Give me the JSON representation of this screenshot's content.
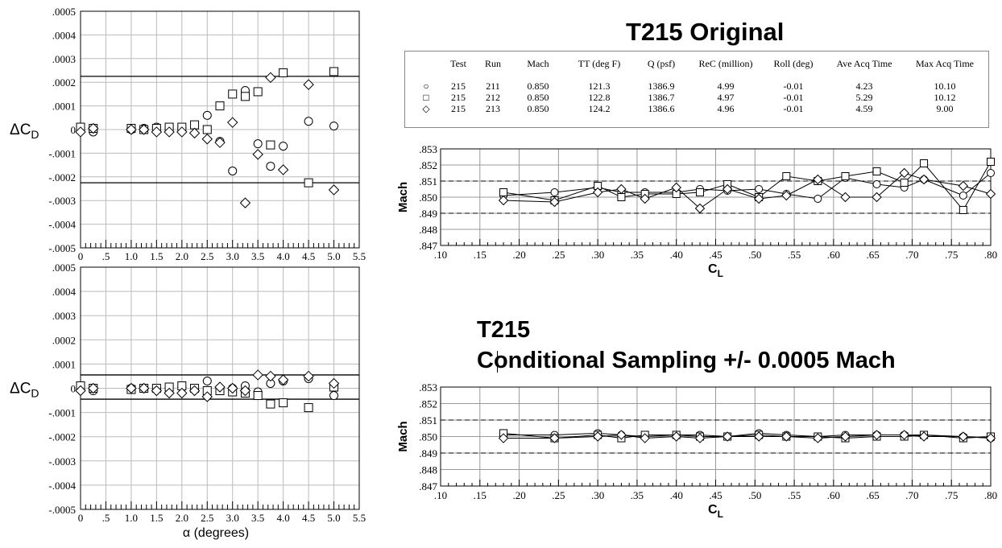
{
  "left_charts": {
    "ylabel": "ΔC",
    "ylabel_sub": "D",
    "xlabel": "α (degrees)",
    "y_ticks": [
      ".0005",
      ".0004",
      ".0003",
      ".0002",
      ".0001",
      "0",
      "-.0001",
      "-.0002",
      "-.0003",
      "-.0004",
      "-.0005"
    ],
    "x_ticks": [
      "0",
      ".5",
      "1.0",
      "1.5",
      "2.0",
      "2.5",
      "3.0",
      "3.5",
      "4.0",
      "4.5",
      "5.0",
      "5.5"
    ]
  },
  "right_top": {
    "title": "T215 Original",
    "legend_headers": [
      "Test",
      "Run",
      "Mach",
      "TT (deg F)",
      "Q (psf)",
      "ReC (million)",
      "Roll (deg)",
      "Ave Acq Time",
      "Max Acq Time"
    ],
    "legend_rows": [
      {
        "symbol": "○",
        "cells": [
          "215",
          "211",
          "0.850",
          "121.3",
          "1386.9",
          "4.99",
          "-0.01",
          "4.23",
          "10.10"
        ]
      },
      {
        "symbol": "□",
        "cells": [
          "215",
          "212",
          "0.850",
          "122.8",
          "1386.7",
          "4.97",
          "-0.01",
          "5.29",
          "10.12"
        ]
      },
      {
        "symbol": "◇",
        "cells": [
          "215",
          "213",
          "0.850",
          "124.2",
          "1386.6",
          "4.96",
          "-0.01",
          "4.59",
          "9.00"
        ]
      }
    ]
  },
  "right_bottom": {
    "title_line1": "T215",
    "title_line2": "Conditional Sampling +/- 0.0005 Mach"
  },
  "mach_axis": {
    "ylabel": "Mach",
    "xlabel": "C",
    "xlabel_sub": "L",
    "y_ticks": [
      ".853",
      ".852",
      ".851",
      ".850",
      ".849",
      ".848",
      ".847"
    ],
    "x_ticks": [
      ".10",
      ".15",
      ".20",
      ".25",
      ".30",
      ".35",
      ".40",
      ".45",
      ".50",
      ".55",
      ".60",
      ".65",
      ".70",
      ".75",
      ".80"
    ]
  },
  "chart_data": [
    {
      "type": "scatter",
      "ylabel": "ΔCD",
      "xlabel": "",
      "xlim": [
        0,
        5.5
      ],
      "ylim": [
        -0.0005,
        0.0005
      ],
      "grid": true,
      "reference_lines": [
        0.000225,
        -0.000225
      ],
      "series": [
        {
          "marker": "circle",
          "x": [
            0,
            0.25,
            1.0,
            1.25,
            1.5,
            1.75,
            2.0,
            2.5,
            2.75,
            3.0,
            3.25,
            3.5,
            3.75,
            4.0,
            4.5,
            5.0
          ],
          "y": [
            0.0,
            -1e-05,
            0.0,
            5e-06,
            1e-05,
            5e-06,
            5e-06,
            6e-05,
            -5e-05,
            -0.000175,
            0.000165,
            -6e-05,
            -0.000155,
            -7e-05,
            3.5e-05,
            1.5e-05
          ]
        },
        {
          "marker": "square",
          "x": [
            0,
            0.25,
            1.0,
            1.25,
            1.5,
            1.75,
            2.0,
            2.25,
            2.5,
            2.75,
            3.0,
            3.25,
            3.5,
            3.75,
            4.0,
            4.5,
            5.0
          ],
          "y": [
            1e-05,
            5e-06,
            5e-06,
            0.0,
            5e-06,
            1e-05,
            1e-05,
            2e-05,
            0.0,
            0.0001,
            0.00015,
            0.00014,
            0.00016,
            -6.5e-05,
            0.00024,
            -0.000225,
            0.000245
          ]
        },
        {
          "marker": "diamond",
          "x": [
            0,
            0.25,
            1.0,
            1.25,
            1.5,
            1.75,
            2.0,
            2.25,
            2.5,
            2.75,
            3.0,
            3.25,
            3.5,
            3.75,
            4.0,
            4.5,
            5.0
          ],
          "y": [
            -1e-05,
            5e-06,
            0.0,
            0.0,
            -1e-05,
            -1e-05,
            -1e-05,
            -1.5e-05,
            -4e-05,
            -5.5e-05,
            3e-05,
            -0.00031,
            -0.000105,
            0.00022,
            -0.00017,
            0.00019,
            -0.000255
          ]
        }
      ]
    },
    {
      "type": "scatter",
      "ylabel": "ΔCD",
      "xlabel": "α (degrees)",
      "xlim": [
        0,
        5.5
      ],
      "ylim": [
        -0.0005,
        0.0005
      ],
      "grid": true,
      "reference_lines": [
        5.5e-05,
        -4.5e-05
      ],
      "series": [
        {
          "marker": "circle",
          "x": [
            0,
            0.25,
            1.0,
            1.25,
            1.5,
            1.75,
            2.0,
            2.25,
            2.5,
            2.75,
            3.0,
            3.25,
            3.5,
            3.75,
            4.0,
            4.5,
            5.0
          ],
          "y": [
            0.0,
            -1e-05,
            0.0,
            0.0,
            0.0,
            0.0,
            5e-06,
            0.0,
            3e-05,
            0.0,
            0.0,
            1e-05,
            -1.5e-05,
            2e-05,
            3e-05,
            4e-05,
            -3e-05
          ]
        },
        {
          "marker": "square",
          "x": [
            0,
            0.25,
            1.0,
            1.25,
            1.5,
            1.75,
            2.0,
            2.25,
            2.5,
            2.75,
            3.0,
            3.25,
            3.5,
            3.75,
            4.0,
            4.5,
            5.0
          ],
          "y": [
            1e-05,
            0.0,
            -5e-06,
            0.0,
            0.0,
            5e-06,
            1e-05,
            0.0,
            -1e-05,
            -1e-05,
            -1.5e-05,
            -2e-05,
            -3e-05,
            -6.5e-05,
            -6e-05,
            -8e-05,
            5e-06
          ]
        },
        {
          "marker": "diamond",
          "x": [
            0,
            0.25,
            1.0,
            1.25,
            1.5,
            1.75,
            2.0,
            2.25,
            2.5,
            2.75,
            3.0,
            3.25,
            3.5,
            3.75,
            4.0,
            4.5,
            5.0
          ],
          "y": [
            -1e-05,
            0.0,
            0.0,
            0.0,
            -1e-05,
            -2e-05,
            -2e-05,
            -1e-05,
            -3.5e-05,
            5e-06,
            0.0,
            -1e-05,
            5.5e-05,
            5e-05,
            3.5e-05,
            5e-05,
            2e-05
          ]
        }
      ]
    },
    {
      "type": "line",
      "title": "T215 Original",
      "ylabel": "Mach",
      "xlabel": "CL",
      "xlim": [
        0.1,
        0.8
      ],
      "ylim": [
        0.847,
        0.853
      ],
      "grid": true,
      "reference_lines": [
        0.851,
        0.849
      ],
      "series": [
        {
          "marker": "circle",
          "x": [
            0.18,
            0.245,
            0.3,
            0.33,
            0.36,
            0.4,
            0.43,
            0.465,
            0.505,
            0.54,
            0.58,
            0.615,
            0.655,
            0.69,
            0.715,
            0.765,
            0.8
          ],
          "y": [
            0.8501,
            0.8503,
            0.8506,
            0.8503,
            0.8503,
            0.8503,
            0.8505,
            0.8504,
            0.8505,
            0.8502,
            0.8499,
            0.8512,
            0.8508,
            0.8506,
            0.8511,
            0.8501,
            0.8515
          ]
        },
        {
          "marker": "square",
          "x": [
            0.18,
            0.245,
            0.3,
            0.33,
            0.36,
            0.4,
            0.43,
            0.465,
            0.505,
            0.54,
            0.58,
            0.615,
            0.655,
            0.69,
            0.715,
            0.765,
            0.8
          ],
          "y": [
            0.8503,
            0.8498,
            0.8507,
            0.85,
            0.8502,
            0.8502,
            0.8503,
            0.8508,
            0.85,
            0.8513,
            0.851,
            0.8513,
            0.8516,
            0.8509,
            0.8521,
            0.8492,
            0.8522
          ]
        },
        {
          "marker": "diamond",
          "x": [
            0.18,
            0.245,
            0.3,
            0.33,
            0.36,
            0.4,
            0.43,
            0.465,
            0.505,
            0.54,
            0.58,
            0.615,
            0.655,
            0.69,
            0.715,
            0.765,
            0.8
          ],
          "y": [
            0.8498,
            0.8497,
            0.8503,
            0.8505,
            0.8499,
            0.8506,
            0.8493,
            0.8505,
            0.8499,
            0.8501,
            0.8511,
            0.85,
            0.85,
            0.8515,
            0.8511,
            0.8507,
            0.8502
          ]
        }
      ]
    },
    {
      "type": "line",
      "title": "T215 Conditional Sampling +/- 0.0005 Mach",
      "ylabel": "Mach",
      "xlabel": "CL",
      "xlim": [
        0.1,
        0.8
      ],
      "ylim": [
        0.847,
        0.853
      ],
      "grid": true,
      "reference_lines": [
        0.851,
        0.849
      ],
      "series": [
        {
          "marker": "circle",
          "x": [
            0.18,
            0.245,
            0.3,
            0.33,
            0.36,
            0.4,
            0.43,
            0.465,
            0.505,
            0.54,
            0.58,
            0.615,
            0.655,
            0.69,
            0.715,
            0.765,
            0.8
          ],
          "y": [
            0.8501,
            0.8501,
            0.8502,
            0.8501,
            0.85,
            0.8501,
            0.8501,
            0.85,
            0.8502,
            0.8501,
            0.85,
            0.8501,
            0.8501,
            0.8501,
            0.8501,
            0.85,
            0.8499
          ]
        },
        {
          "marker": "square",
          "x": [
            0.18,
            0.245,
            0.3,
            0.33,
            0.36,
            0.4,
            0.43,
            0.465,
            0.505,
            0.54,
            0.58,
            0.615,
            0.655,
            0.69,
            0.715,
            0.765,
            0.8
          ],
          "y": [
            0.8502,
            0.8499,
            0.8501,
            0.8499,
            0.8501,
            0.8501,
            0.85,
            0.85,
            0.8501,
            0.85,
            0.85,
            0.8499,
            0.85,
            0.85,
            0.8501,
            0.8499,
            0.85
          ]
        },
        {
          "marker": "diamond",
          "x": [
            0.18,
            0.245,
            0.3,
            0.33,
            0.36,
            0.4,
            0.43,
            0.465,
            0.505,
            0.54,
            0.58,
            0.615,
            0.655,
            0.69,
            0.715,
            0.765,
            0.8
          ],
          "y": [
            0.8499,
            0.8499,
            0.85,
            0.8501,
            0.8499,
            0.85,
            0.8499,
            0.85,
            0.85,
            0.85,
            0.8499,
            0.85,
            0.8501,
            0.8501,
            0.85,
            0.85,
            0.8499
          ]
        }
      ]
    }
  ]
}
